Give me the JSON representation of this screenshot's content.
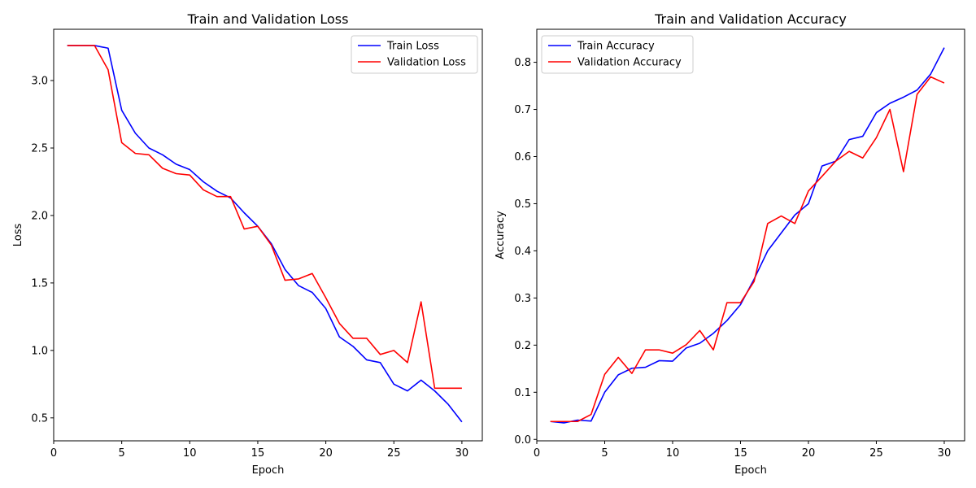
{
  "chart_data": [
    {
      "type": "line",
      "title": "Train and Validation Loss",
      "xlabel": "Epoch",
      "ylabel": "Loss",
      "xlim": [
        0,
        31.5
      ],
      "ylim": [
        0.33,
        3.38
      ],
      "xticks": [
        0,
        5,
        10,
        15,
        20,
        25,
        30
      ],
      "yticks": [
        0.5,
        1.0,
        1.5,
        2.0,
        2.5,
        3.0
      ],
      "xtick_labels": [
        "0",
        "5",
        "10",
        "15",
        "20",
        "25",
        "30"
      ],
      "ytick_labels": [
        "0.5",
        "1.0",
        "1.5",
        "2.0",
        "2.5",
        "3.0"
      ],
      "grid": false,
      "legend": "upper-right",
      "x": [
        1,
        2,
        3,
        4,
        5,
        6,
        7,
        8,
        9,
        10,
        11,
        12,
        13,
        14,
        15,
        16,
        17,
        18,
        19,
        20,
        21,
        22,
        23,
        24,
        25,
        26,
        27,
        28,
        29,
        30
      ],
      "series": [
        {
          "name": "Train Loss",
          "color": "#0000ff",
          "values": [
            3.26,
            3.26,
            3.26,
            3.24,
            2.78,
            2.61,
            2.5,
            2.45,
            2.38,
            2.34,
            2.25,
            2.18,
            2.13,
            2.02,
            1.92,
            1.79,
            1.6,
            1.48,
            1.43,
            1.31,
            1.1,
            1.03,
            0.93,
            0.91,
            0.75,
            0.7,
            0.78,
            0.7,
            0.6,
            0.47
          ]
        },
        {
          "name": "Validation Loss",
          "color": "#ff0000",
          "values": [
            3.26,
            3.26,
            3.26,
            3.08,
            2.54,
            2.46,
            2.45,
            2.35,
            2.31,
            2.3,
            2.19,
            2.14,
            2.14,
            1.9,
            1.92,
            1.78,
            1.52,
            1.53,
            1.57,
            1.39,
            1.2,
            1.09,
            1.09,
            0.97,
            1.0,
            0.91,
            1.36,
            0.72,
            0.72,
            0.72
          ]
        }
      ]
    },
    {
      "type": "line",
      "title": "Train and Validation Accuracy",
      "xlabel": "Epoch",
      "ylabel": "Accuracy",
      "xlim": [
        0,
        31.5
      ],
      "ylim": [
        -0.003,
        0.87
      ],
      "xticks": [
        0,
        5,
        10,
        15,
        20,
        25,
        30
      ],
      "yticks": [
        0.0,
        0.1,
        0.2,
        0.3,
        0.4,
        0.5,
        0.6,
        0.7,
        0.8
      ],
      "xtick_labels": [
        "0",
        "5",
        "10",
        "15",
        "20",
        "25",
        "30"
      ],
      "ytick_labels": [
        "0.0",
        "0.1",
        "0.2",
        "0.3",
        "0.4",
        "0.5",
        "0.6",
        "0.7",
        "0.8"
      ],
      "grid": false,
      "legend": "upper-left",
      "x": [
        1,
        2,
        3,
        4,
        5,
        6,
        7,
        8,
        9,
        10,
        11,
        12,
        13,
        14,
        15,
        16,
        17,
        18,
        19,
        20,
        21,
        22,
        23,
        24,
        25,
        26,
        27,
        28,
        29,
        30
      ],
      "series": [
        {
          "name": "Train Accuracy",
          "color": "#0000ff",
          "values": [
            0.038,
            0.035,
            0.041,
            0.039,
            0.1,
            0.137,
            0.151,
            0.153,
            0.167,
            0.166,
            0.194,
            0.204,
            0.225,
            0.252,
            0.286,
            0.34,
            0.4,
            0.438,
            0.476,
            0.5,
            0.58,
            0.59,
            0.636,
            0.643,
            0.693,
            0.713,
            0.726,
            0.741,
            0.775,
            0.831
          ]
        },
        {
          "name": "Validation Accuracy",
          "color": "#ff0000",
          "values": [
            0.038,
            0.038,
            0.038,
            0.053,
            0.138,
            0.174,
            0.14,
            0.19,
            0.19,
            0.183,
            0.201,
            0.231,
            0.19,
            0.29,
            0.29,
            0.335,
            0.458,
            0.474,
            0.458,
            0.527,
            0.558,
            0.59,
            0.611,
            0.597,
            0.64,
            0.7,
            0.568,
            0.732,
            0.769,
            0.756
          ]
        }
      ]
    }
  ]
}
